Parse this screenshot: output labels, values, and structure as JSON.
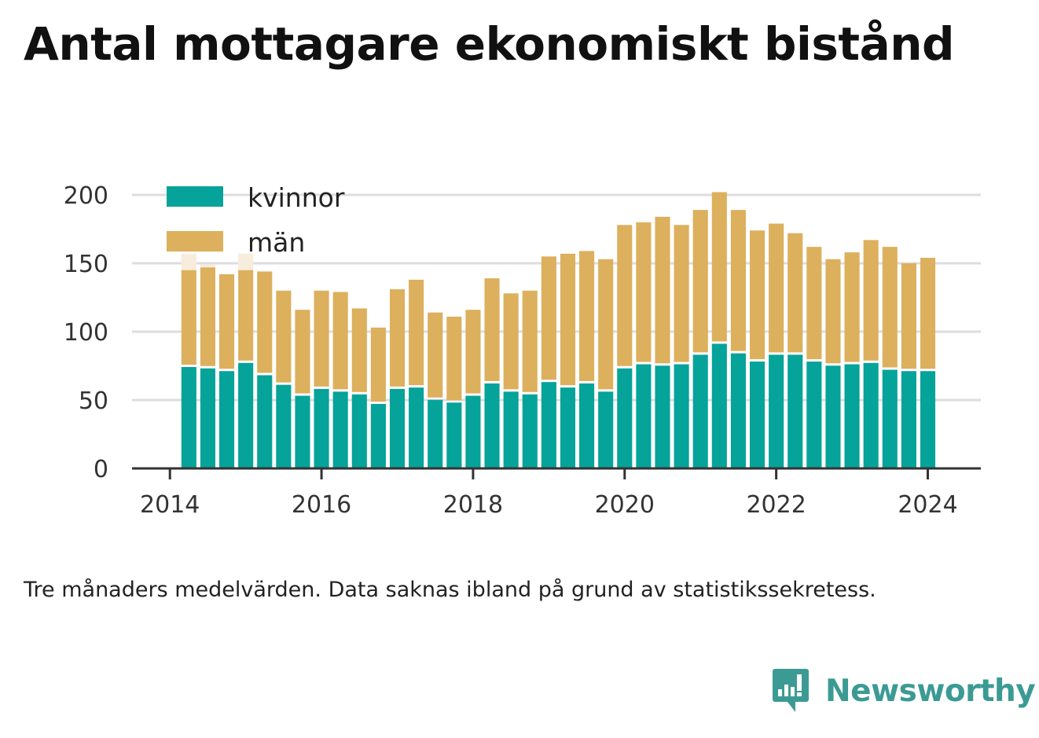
{
  "title": "Antal mottagare ekonomiskt bistånd",
  "caption": "Tre månaders medelvärden. Data saknas ibland på grund av statistikssekretess.",
  "brand": {
    "name": "Newsworthy",
    "icon": "newsworthy-logo-icon",
    "color": "#3b9b94"
  },
  "colors": {
    "kvinnor": "#05a39a",
    "man": "#dcb05d",
    "man_missing": "#f8ecdc",
    "grid": "#dddddd",
    "axis": "#333333"
  },
  "chart_data": {
    "type": "bar",
    "stacked": true,
    "x_unit": "quarter",
    "x": [
      "2014-Q2",
      "2014-Q3",
      "2014-Q4",
      "2015-Q1",
      "2015-Q2",
      "2015-Q3",
      "2015-Q4",
      "2016-Q1",
      "2016-Q2",
      "2016-Q3",
      "2016-Q4",
      "2017-Q1",
      "2017-Q2",
      "2017-Q3",
      "2017-Q4",
      "2018-Q1",
      "2018-Q2",
      "2018-Q3",
      "2018-Q4",
      "2019-Q1",
      "2019-Q2",
      "2019-Q3",
      "2019-Q4",
      "2020-Q1",
      "2020-Q2",
      "2020-Q3",
      "2020-Q4",
      "2021-Q1",
      "2021-Q2",
      "2021-Q3",
      "2021-Q4",
      "2022-Q1",
      "2022-Q2",
      "2022-Q3",
      "2022-Q4",
      "2023-Q1",
      "2023-Q2",
      "2023-Q3",
      "2023-Q4",
      "2024-Q1"
    ],
    "series": [
      {
        "name": "kvinnor",
        "values": [
          75,
          74,
          72,
          78,
          69,
          62,
          54,
          59,
          57,
          55,
          48,
          59,
          60,
          51,
          49,
          54,
          63,
          57,
          55,
          64,
          60,
          63,
          57,
          74,
          77,
          76,
          77,
          84,
          92,
          85,
          79,
          84,
          84,
          79,
          76,
          77,
          78,
          73,
          72,
          72
        ]
      },
      {
        "name": "män",
        "values": [
          70,
          73,
          70,
          67,
          75,
          68,
          62,
          71,
          72,
          62,
          55,
          72,
          78,
          63,
          62,
          62,
          76,
          71,
          75,
          91,
          97,
          96,
          96,
          104,
          103,
          108,
          101,
          105,
          110,
          104,
          95,
          95,
          88,
          83,
          77,
          81,
          89,
          89,
          78,
          82
        ]
      }
    ],
    "missing_men_top": [
      157,
      149,
      null,
      157,
      null,
      null,
      null,
      null,
      null,
      null,
      null,
      null,
      null,
      null,
      null,
      null,
      null,
      null,
      null,
      null,
      null,
      null,
      null,
      null,
      null,
      null,
      null,
      null,
      null,
      null,
      null,
      null,
      null,
      null,
      null,
      null,
      null,
      null,
      null,
      null
    ],
    "y_ticks": [
      0,
      50,
      100,
      150,
      200
    ],
    "x_ticks": [
      {
        "label": "2014",
        "x": 2014
      },
      {
        "label": "2016",
        "x": 2016
      },
      {
        "label": "2018",
        "x": 2018
      },
      {
        "label": "2020",
        "x": 2020
      },
      {
        "label": "2022",
        "x": 2022
      },
      {
        "label": "2024",
        "x": 2024
      }
    ],
    "ylim": [
      0,
      200
    ],
    "xlim": [
      2013.5,
      2024.7
    ],
    "grid": true,
    "legend": {
      "placement": "top-left",
      "entries": [
        "kvinnor",
        "män"
      ]
    }
  }
}
